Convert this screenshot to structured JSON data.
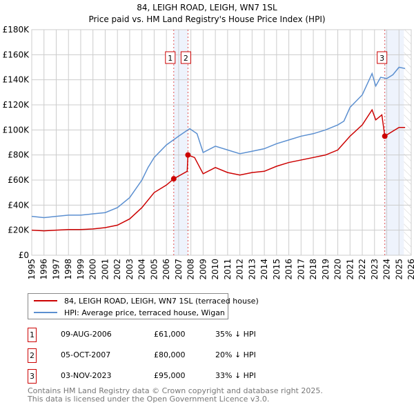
{
  "chart_data": {
    "type": "line",
    "title": "84, LEIGH ROAD, LEIGH, WN7 1SL",
    "subtitle": "Price paid vs. HM Land Registry's House Price Index (HPI)",
    "xlim": [
      1995,
      2026
    ],
    "ylim": [
      0,
      180000
    ],
    "x_ticks": [
      "1995",
      "1996",
      "1997",
      "1998",
      "1999",
      "2000",
      "2001",
      "2002",
      "2003",
      "2004",
      "2005",
      "2006",
      "2007",
      "2008",
      "2009",
      "2010",
      "2011",
      "2012",
      "2013",
      "2014",
      "2015",
      "2016",
      "2017",
      "2018",
      "2019",
      "2020",
      "2021",
      "2022",
      "2023",
      "2024",
      "2025",
      "2026"
    ],
    "y_ticks": [
      {
        "v": 0,
        "label": "£0"
      },
      {
        "v": 20000,
        "label": "£20K"
      },
      {
        "v": 40000,
        "label": "£40K"
      },
      {
        "v": 60000,
        "label": "£60K"
      },
      {
        "v": 80000,
        "label": "£80K"
      },
      {
        "v": 100000,
        "label": "£100K"
      },
      {
        "v": 120000,
        "label": "£120K"
      },
      {
        "v": 140000,
        "label": "£140K"
      },
      {
        "v": 160000,
        "label": "£160K"
      },
      {
        "v": 180000,
        "label": "£180K"
      }
    ],
    "grid": true,
    "series": [
      {
        "name": "84, LEIGH ROAD, LEIGH, WN7 1SL (terraced house)",
        "color": "#cc0000",
        "x": [
          1995,
          1996,
          1997,
          1998,
          1999,
          2000,
          2001,
          2002,
          2003,
          2004,
          2005,
          2006,
          2006.6,
          2007.7,
          2007.76,
          2008.3,
          2009,
          2010,
          2011,
          2012,
          2013,
          2014,
          2015,
          2016,
          2017,
          2018,
          2019,
          2020,
          2021,
          2022,
          2022.8,
          2023.1,
          2023.6,
          2023.84,
          2024.5,
          2025,
          2025.5
        ],
        "y": [
          20000,
          19500,
          20000,
          20500,
          20500,
          21000,
          22000,
          24000,
          29000,
          38000,
          50000,
          56000,
          61000,
          67000,
          80000,
          78000,
          65000,
          70000,
          66000,
          64000,
          66000,
          67000,
          71000,
          74000,
          76000,
          78000,
          80000,
          84000,
          95000,
          104000,
          116000,
          108000,
          112000,
          95000,
          99000,
          102000,
          102000
        ]
      },
      {
        "name": "HPI: Average price, terraced house, Wigan",
        "color": "#5b8fd0",
        "x": [
          1995,
          1996,
          1997,
          1998,
          1999,
          2000,
          2001,
          2002,
          2003,
          2004,
          2004.5,
          2005,
          2006,
          2007,
          2007.9,
          2008.5,
          2009,
          2010,
          2011,
          2012,
          2013,
          2014,
          2015,
          2016,
          2017,
          2018,
          2019,
          2020,
          2020.5,
          2021,
          2022,
          2022.8,
          2023.1,
          2023.5,
          2024,
          2024.5,
          2025,
          2025.5
        ],
        "y": [
          31000,
          30000,
          31000,
          32000,
          32000,
          33000,
          34000,
          38000,
          46000,
          60000,
          70000,
          78000,
          88000,
          95000,
          101000,
          97000,
          82000,
          87000,
          84000,
          81000,
          83000,
          85000,
          89000,
          92000,
          95000,
          97000,
          100000,
          104000,
          107000,
          118000,
          128000,
          145000,
          135000,
          142000,
          141000,
          144000,
          150000,
          149000
        ]
      }
    ],
    "sales": [
      {
        "n": "1",
        "x": 2006.6,
        "price": 61000,
        "date": "09-AUG-2006",
        "price_label": "£61,000",
        "hpi": "35% ↓ HPI"
      },
      {
        "n": "2",
        "x": 2007.76,
        "price": 80000,
        "date": "05-OCT-2007",
        "price_label": "£80,000",
        "hpi": "20% ↓ HPI"
      },
      {
        "n": "3",
        "x": 2023.84,
        "price": 95000,
        "date": "03-NOV-2023",
        "price_label": "£95,000",
        "hpi": "33% ↓ HPI"
      }
    ],
    "shaded": [
      [
        2006.6,
        2007.76
      ],
      [
        2023.84,
        2025.4
      ]
    ],
    "hatch_from": 2025.4
  },
  "footer": {
    "line1": "Contains HM Land Registry data © Crown copyright and database right 2025.",
    "line2": "This data is licensed under the Open Government Licence v3.0."
  }
}
